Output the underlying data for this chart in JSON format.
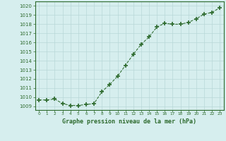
{
  "x": [
    0,
    1,
    2,
    3,
    4,
    5,
    6,
    7,
    8,
    9,
    10,
    11,
    12,
    13,
    14,
    15,
    16,
    17,
    18,
    19,
    20,
    21,
    22,
    23
  ],
  "y": [
    1009.7,
    1009.7,
    1009.8,
    1009.3,
    1009.1,
    1009.1,
    1009.2,
    1009.3,
    1010.6,
    1011.4,
    1012.3,
    1013.5,
    1014.7,
    1015.8,
    1016.6,
    1017.7,
    1018.1,
    1018.0,
    1018.0,
    1018.2,
    1018.6,
    1019.1,
    1019.3,
    1019.8
  ],
  "line_color": "#2d6a2d",
  "marker": "+",
  "marker_size": 4,
  "bg_color": "#d6eeee",
  "grid_color": "#b8d8d8",
  "ylabel_ticks": [
    1009,
    1010,
    1011,
    1012,
    1013,
    1014,
    1015,
    1016,
    1017,
    1018,
    1019,
    1020
  ],
  "ylim": [
    1008.6,
    1020.5
  ],
  "xlim": [
    -0.5,
    23.5
  ],
  "xlabel": "Graphe pression niveau de la mer (hPa)",
  "xlabel_color": "#2d6a2d",
  "tick_color": "#2d6a2d",
  "axis_color": "#2d6a2d"
}
